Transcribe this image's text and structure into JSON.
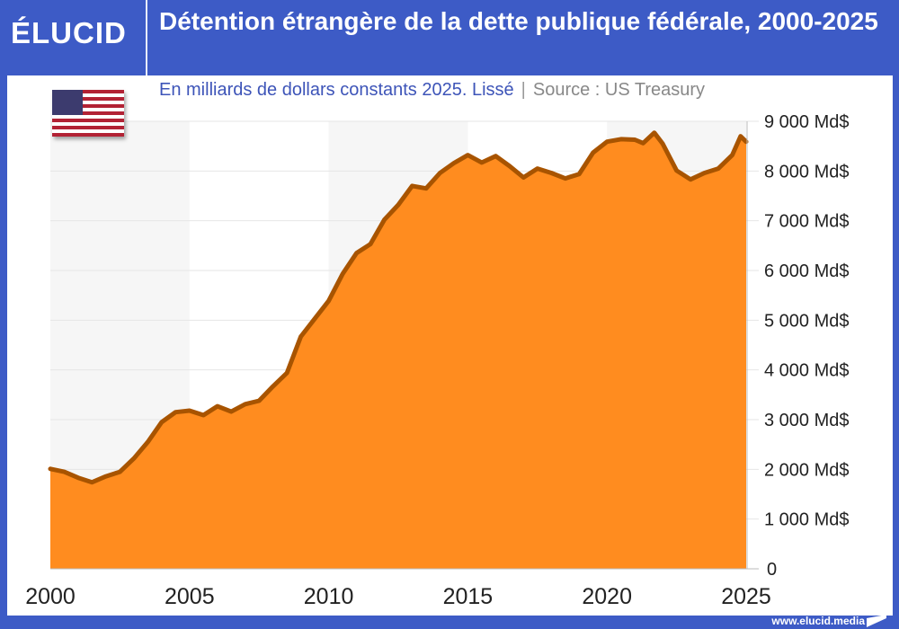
{
  "header": {
    "logo": "ÉLUCID",
    "title": "Détention étrangère de la dette publique fédérale, 2000-2025"
  },
  "subtitle": {
    "units": "En milliards de dollars constants 2025. Lissé",
    "source": "Source : US Treasury"
  },
  "footer": {
    "url": "www.elucid.media"
  },
  "icons": {
    "flag": "us-flag-icon",
    "logo_mark": "elucid-mark-icon"
  },
  "colors": {
    "brand": "#3d5bc6",
    "fill": "#ff8c1f",
    "line": "#a85400",
    "band": "#f6f6f6"
  },
  "chart_data": {
    "type": "area",
    "title": "Détention étrangère de la dette publique fédérale, 2000-2025",
    "xlabel": "",
    "ylabel": "",
    "xlim": [
      2000,
      2025
    ],
    "ylim": [
      0,
      9000
    ],
    "grid": true,
    "x_ticks": [
      "2000",
      "2005",
      "2010",
      "2015",
      "2020",
      "2025"
    ],
    "y_ticks": [
      "0",
      "1 000 Md$",
      "2 000 Md$",
      "3 000 Md$",
      "4 000 Md$",
      "5 000 Md$",
      "6 000 Md$",
      "7 000 Md$",
      "8 000 Md$",
      "9 000 Md$"
    ],
    "x": [
      2000,
      2000.5,
      2001,
      2001.5,
      2002,
      2002.5,
      2003,
      2003.5,
      2004,
      2004.5,
      2005,
      2005.5,
      2006,
      2006.5,
      2007,
      2007.5,
      2008,
      2008.5,
      2009,
      2009.5,
      2010,
      2010.5,
      2011,
      2011.5,
      2012,
      2012.5,
      2013,
      2013.5,
      2014,
      2014.5,
      2015,
      2015.5,
      2016,
      2016.5,
      2017,
      2017.5,
      2018,
      2018.5,
      2019,
      2019.5,
      2020,
      2020.5,
      2021,
      2021.3,
      2021.7,
      2022,
      2022.5,
      2023,
      2023.5,
      2024,
      2024.5,
      2024.8,
      2025
    ],
    "values": [
      2010,
      1950,
      1830,
      1740,
      1860,
      1950,
      2220,
      2550,
      2950,
      3150,
      3180,
      3090,
      3270,
      3160,
      3310,
      3380,
      3670,
      3940,
      4670,
      5030,
      5390,
      5930,
      6350,
      6530,
      7020,
      7320,
      7700,
      7650,
      7960,
      8160,
      8320,
      8170,
      8300,
      8100,
      7870,
      8050,
      7960,
      7850,
      7940,
      8370,
      8590,
      8640,
      8630,
      8560,
      8770,
      8550,
      8010,
      7830,
      7960,
      8050,
      8320,
      8700,
      8590
    ]
  }
}
